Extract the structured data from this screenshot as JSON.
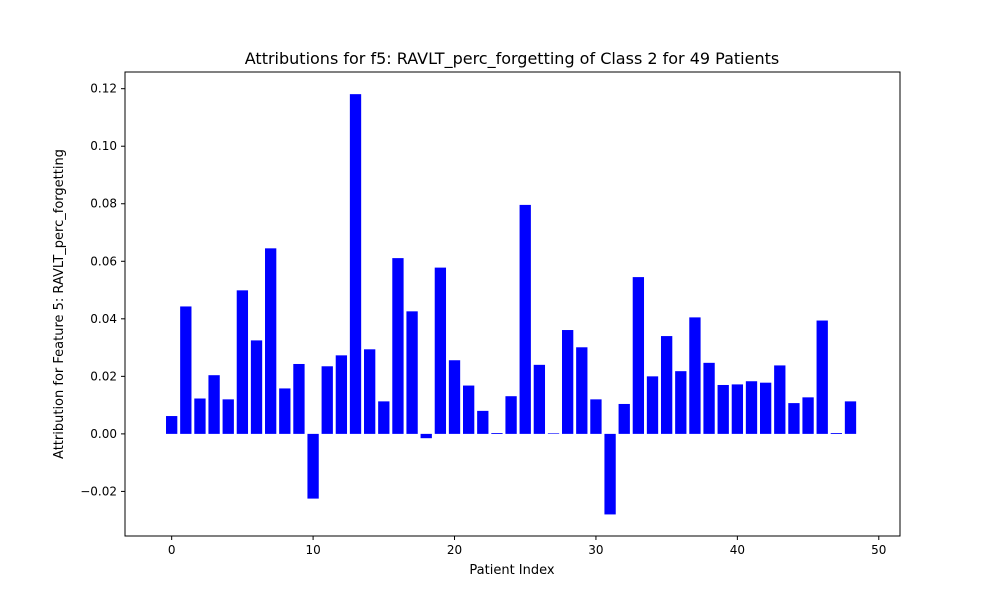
{
  "chart_data": {
    "type": "bar",
    "title": "Attributions for f5: RAVLT_perc_forgetting of Class 2 for 49 Patients",
    "xlabel": "Patient Index",
    "ylabel": "Attribution for Feature 5: RAVLT_perc_forgetting",
    "xlim": [
      -3.3,
      51.5
    ],
    "ylim": [
      -0.0355,
      0.1258
    ],
    "xticks": [
      0,
      10,
      20,
      30,
      40,
      50
    ],
    "xtick_labels": [
      "0",
      "10",
      "20",
      "30",
      "40",
      "50"
    ],
    "yticks": [
      -0.02,
      0.0,
      0.02,
      0.04,
      0.06,
      0.08,
      0.1,
      0.12
    ],
    "ytick_labels": [
      "−0.02",
      "0.00",
      "0.02",
      "0.04",
      "0.06",
      "0.08",
      "0.10",
      "0.12"
    ],
    "grid": false,
    "bar_color": "#0000ff",
    "x": [
      0,
      1,
      2,
      3,
      4,
      5,
      6,
      7,
      8,
      9,
      10,
      11,
      12,
      13,
      14,
      15,
      16,
      17,
      18,
      19,
      20,
      21,
      22,
      23,
      24,
      25,
      26,
      27,
      28,
      29,
      30,
      31,
      32,
      33,
      34,
      35,
      36,
      37,
      38,
      39,
      40,
      41,
      42,
      43,
      44,
      45,
      46,
      47,
      48
    ],
    "values": [
      0.0062,
      0.0443,
      0.0123,
      0.0204,
      0.012,
      0.0499,
      0.0325,
      0.0645,
      0.0158,
      0.0243,
      -0.0225,
      0.0235,
      0.0273,
      0.1181,
      0.0294,
      0.0113,
      0.0611,
      0.0426,
      -0.0015,
      0.0578,
      0.0256,
      0.0168,
      0.008,
      0.0003,
      0.0131,
      0.0796,
      0.024,
      0.0002,
      0.0361,
      0.0301,
      0.012,
      -0.028,
      0.0104,
      0.0545,
      0.02,
      0.034,
      0.0218,
      0.0405,
      0.0247,
      0.017,
      0.0172,
      0.0183,
      0.0178,
      0.0238,
      0.0107,
      0.0127,
      0.0394,
      0.0003,
      0.0113
    ]
  }
}
